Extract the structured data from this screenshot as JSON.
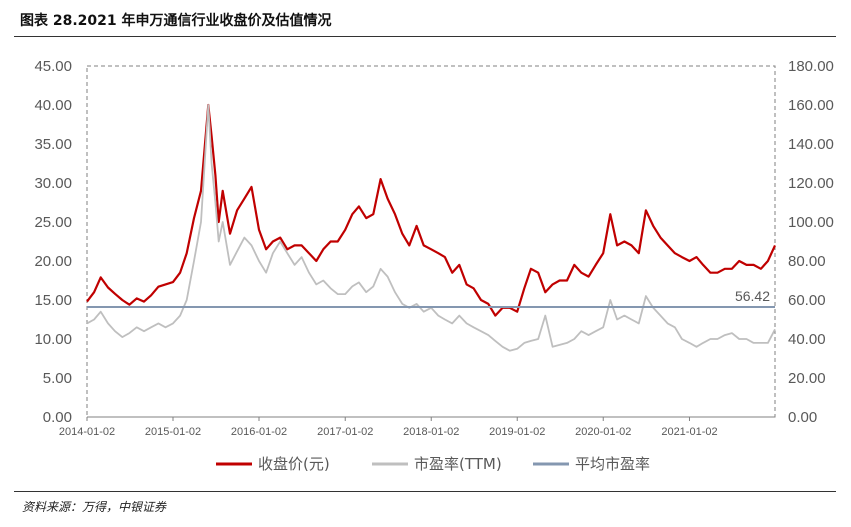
{
  "header": {
    "title": "图表 28.2021 年申万通信行业收盘价及估值情况"
  },
  "footer": {
    "source": "资料来源：万得，中银证券"
  },
  "colors": {
    "close": "#C00000",
    "pe": "#BFBFBF",
    "avg": "#8497B0",
    "frame": "#808080"
  },
  "chart_data": {
    "type": "line",
    "title": "",
    "xlabel": "",
    "ylabel": "",
    "ylim_left": [
      0,
      45
    ],
    "ylim_right": [
      0,
      180
    ],
    "yticks_left": [
      "0.00",
      "5.00",
      "10.00",
      "15.00",
      "20.00",
      "25.00",
      "30.00",
      "35.00",
      "40.00",
      "45.00"
    ],
    "yticks_right": [
      "0.00",
      "20.00",
      "40.00",
      "60.00",
      "80.00",
      "100.00",
      "120.00",
      "140.00",
      "160.00",
      "180.00"
    ],
    "x_ticks": [
      "2014-01-02",
      "2015-01-02",
      "2016-01-02",
      "2017-01-02",
      "2018-01-02",
      "2019-01-02",
      "2020-01-02",
      "2021-01-02"
    ],
    "x_range": [
      "2014-01-02",
      "2021-12-31"
    ],
    "legend_position": "bottom",
    "series": [
      {
        "name": "收盘价(元)",
        "axis": "left",
        "color": "#C00000",
        "points": [
          [
            "2014-01-02",
            14.8
          ],
          [
            "2014-02-01",
            16.0
          ],
          [
            "2014-03-01",
            17.9
          ],
          [
            "2014-04-01",
            16.6
          ],
          [
            "2014-05-01",
            15.8
          ],
          [
            "2014-06-01",
            15.0
          ],
          [
            "2014-07-01",
            14.4
          ],
          [
            "2014-08-01",
            15.2
          ],
          [
            "2014-09-01",
            14.8
          ],
          [
            "2014-10-01",
            15.6
          ],
          [
            "2014-11-01",
            16.7
          ],
          [
            "2014-12-01",
            17.0
          ],
          [
            "2015-01-02",
            17.3
          ],
          [
            "2015-02-01",
            18.5
          ],
          [
            "2015-03-01",
            21.0
          ],
          [
            "2015-04-01",
            25.5
          ],
          [
            "2015-05-01",
            29.0
          ],
          [
            "2015-06-01",
            40.0
          ],
          [
            "2015-06-15",
            36.0
          ],
          [
            "2015-07-01",
            31.0
          ],
          [
            "2015-07-15",
            25.0
          ],
          [
            "2015-08-01",
            29.0
          ],
          [
            "2015-09-01",
            23.5
          ],
          [
            "2015-10-01",
            26.5
          ],
          [
            "2015-11-01",
            28.0
          ],
          [
            "2015-12-01",
            29.5
          ],
          [
            "2016-01-02",
            24.0
          ],
          [
            "2016-02-01",
            21.5
          ],
          [
            "2016-03-01",
            22.5
          ],
          [
            "2016-04-01",
            23.0
          ],
          [
            "2016-05-01",
            21.5
          ],
          [
            "2016-06-01",
            22.0
          ],
          [
            "2016-07-01",
            22.0
          ],
          [
            "2016-08-01",
            21.0
          ],
          [
            "2016-09-01",
            20.0
          ],
          [
            "2016-10-01",
            21.5
          ],
          [
            "2016-11-01",
            22.5
          ],
          [
            "2016-12-01",
            22.5
          ],
          [
            "2017-01-02",
            24.0
          ],
          [
            "2017-02-01",
            26.0
          ],
          [
            "2017-03-01",
            27.0
          ],
          [
            "2017-04-01",
            25.5
          ],
          [
            "2017-05-01",
            26.0
          ],
          [
            "2017-06-01",
            30.5
          ],
          [
            "2017-07-01",
            28.0
          ],
          [
            "2017-08-01",
            26.0
          ],
          [
            "2017-09-01",
            23.5
          ],
          [
            "2017-10-01",
            22.0
          ],
          [
            "2017-11-01",
            24.5
          ],
          [
            "2017-12-01",
            22.0
          ],
          [
            "2018-01-02",
            21.5
          ],
          [
            "2018-02-01",
            21.0
          ],
          [
            "2018-03-01",
            20.5
          ],
          [
            "2018-04-01",
            18.5
          ],
          [
            "2018-05-01",
            19.5
          ],
          [
            "2018-06-01",
            17.0
          ],
          [
            "2018-07-01",
            16.5
          ],
          [
            "2018-08-01",
            15.0
          ],
          [
            "2018-09-01",
            14.5
          ],
          [
            "2018-10-01",
            13.0
          ],
          [
            "2018-11-01",
            14.0
          ],
          [
            "2018-12-01",
            14.0
          ],
          [
            "2019-01-02",
            13.5
          ],
          [
            "2019-02-01",
            16.5
          ],
          [
            "2019-03-01",
            19.0
          ],
          [
            "2019-04-01",
            18.5
          ],
          [
            "2019-05-01",
            16.0
          ],
          [
            "2019-06-01",
            17.0
          ],
          [
            "2019-07-01",
            17.5
          ],
          [
            "2019-08-01",
            17.5
          ],
          [
            "2019-09-01",
            19.5
          ],
          [
            "2019-10-01",
            18.5
          ],
          [
            "2019-11-01",
            18.0
          ],
          [
            "2019-12-01",
            19.5
          ],
          [
            "2020-01-02",
            21.0
          ],
          [
            "2020-02-01",
            26.0
          ],
          [
            "2020-03-01",
            22.0
          ],
          [
            "2020-04-01",
            22.5
          ],
          [
            "2020-05-01",
            22.0
          ],
          [
            "2020-06-01",
            21.0
          ],
          [
            "2020-07-01",
            26.5
          ],
          [
            "2020-08-01",
            24.5
          ],
          [
            "2020-09-01",
            23.0
          ],
          [
            "2020-10-01",
            22.0
          ],
          [
            "2020-11-01",
            21.0
          ],
          [
            "2020-12-01",
            20.5
          ],
          [
            "2021-01-02",
            20.0
          ],
          [
            "2021-02-01",
            20.5
          ],
          [
            "2021-03-01",
            19.5
          ],
          [
            "2021-04-01",
            18.5
          ],
          [
            "2021-05-01",
            18.5
          ],
          [
            "2021-06-01",
            19.0
          ],
          [
            "2021-07-01",
            19.0
          ],
          [
            "2021-08-01",
            20.0
          ],
          [
            "2021-09-01",
            19.5
          ],
          [
            "2021-10-01",
            19.5
          ],
          [
            "2021-11-01",
            19.0
          ],
          [
            "2021-12-01",
            20.0
          ],
          [
            "2021-12-31",
            22.0
          ]
        ]
      },
      {
        "name": "市盈率(TTM)",
        "axis": "right",
        "color": "#BFBFBF",
        "points": [
          [
            "2014-01-02",
            48
          ],
          [
            "2014-02-01",
            50
          ],
          [
            "2014-03-01",
            54
          ],
          [
            "2014-04-01",
            48
          ],
          [
            "2014-05-01",
            44
          ],
          [
            "2014-06-01",
            41
          ],
          [
            "2014-07-01",
            43
          ],
          [
            "2014-08-01",
            46
          ],
          [
            "2014-09-01",
            44
          ],
          [
            "2014-10-01",
            46
          ],
          [
            "2014-11-01",
            48
          ],
          [
            "2014-12-01",
            46
          ],
          [
            "2015-01-02",
            48
          ],
          [
            "2015-02-01",
            52
          ],
          [
            "2015-03-01",
            60
          ],
          [
            "2015-04-01",
            80
          ],
          [
            "2015-05-01",
            100
          ],
          [
            "2015-06-01",
            160
          ],
          [
            "2015-06-15",
            130
          ],
          [
            "2015-07-01",
            110
          ],
          [
            "2015-07-15",
            90
          ],
          [
            "2015-08-01",
            100
          ],
          [
            "2015-09-01",
            78
          ],
          [
            "2015-10-01",
            85
          ],
          [
            "2015-11-01",
            92
          ],
          [
            "2015-12-01",
            88
          ],
          [
            "2016-01-02",
            80
          ],
          [
            "2016-02-01",
            74
          ],
          [
            "2016-03-01",
            84
          ],
          [
            "2016-04-01",
            90
          ],
          [
            "2016-05-01",
            84
          ],
          [
            "2016-06-01",
            78
          ],
          [
            "2016-07-01",
            82
          ],
          [
            "2016-08-01",
            74
          ],
          [
            "2016-09-01",
            68
          ],
          [
            "2016-10-01",
            70
          ],
          [
            "2016-11-01",
            66
          ],
          [
            "2016-12-01",
            63
          ],
          [
            "2017-01-02",
            63
          ],
          [
            "2017-02-01",
            67
          ],
          [
            "2017-03-01",
            69
          ],
          [
            "2017-04-01",
            64
          ],
          [
            "2017-05-01",
            67
          ],
          [
            "2017-06-01",
            76
          ],
          [
            "2017-07-01",
            72
          ],
          [
            "2017-08-01",
            64
          ],
          [
            "2017-09-01",
            58
          ],
          [
            "2017-10-01",
            56
          ],
          [
            "2017-11-01",
            58
          ],
          [
            "2017-12-01",
            54
          ],
          [
            "2018-01-02",
            56
          ],
          [
            "2018-02-01",
            52
          ],
          [
            "2018-03-01",
            50
          ],
          [
            "2018-04-01",
            48
          ],
          [
            "2018-05-01",
            52
          ],
          [
            "2018-06-01",
            48
          ],
          [
            "2018-07-01",
            46
          ],
          [
            "2018-08-01",
            44
          ],
          [
            "2018-09-01",
            42
          ],
          [
            "2018-10-01",
            39
          ],
          [
            "2018-11-01",
            36
          ],
          [
            "2018-12-01",
            34
          ],
          [
            "2019-01-02",
            35
          ],
          [
            "2019-02-01",
            38
          ],
          [
            "2019-03-01",
            39
          ],
          [
            "2019-04-01",
            40
          ],
          [
            "2019-05-01",
            52
          ],
          [
            "2019-06-01",
            36
          ],
          [
            "2019-07-01",
            37
          ],
          [
            "2019-08-01",
            38
          ],
          [
            "2019-09-01",
            40
          ],
          [
            "2019-10-01",
            44
          ],
          [
            "2019-11-01",
            42
          ],
          [
            "2019-12-01",
            44
          ],
          [
            "2020-01-02",
            46
          ],
          [
            "2020-02-01",
            60
          ],
          [
            "2020-03-01",
            50
          ],
          [
            "2020-04-01",
            52
          ],
          [
            "2020-05-01",
            50
          ],
          [
            "2020-06-01",
            48
          ],
          [
            "2020-07-01",
            62
          ],
          [
            "2020-08-01",
            56
          ],
          [
            "2020-09-01",
            52
          ],
          [
            "2020-10-01",
            48
          ],
          [
            "2020-11-01",
            46
          ],
          [
            "2020-12-01",
            40
          ],
          [
            "2021-01-02",
            38
          ],
          [
            "2021-02-01",
            36
          ],
          [
            "2021-03-01",
            38
          ],
          [
            "2021-04-01",
            40
          ],
          [
            "2021-05-01",
            40
          ],
          [
            "2021-06-01",
            42
          ],
          [
            "2021-07-01",
            43
          ],
          [
            "2021-08-01",
            40
          ],
          [
            "2021-09-01",
            40
          ],
          [
            "2021-10-01",
            38
          ],
          [
            "2021-11-01",
            38
          ],
          [
            "2021-12-01",
            38
          ],
          [
            "2021-12-31",
            45
          ]
        ]
      },
      {
        "name": "平均市盈率",
        "axis": "right",
        "color": "#8497B0",
        "value": 56.42,
        "label": "56.42"
      }
    ]
  }
}
